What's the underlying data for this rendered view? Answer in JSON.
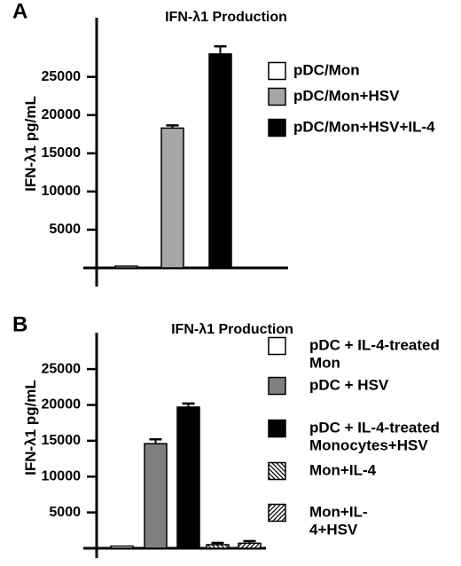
{
  "chart_data": [
    {
      "panel_label": "A",
      "type": "bar",
      "title": "IFN-λ1 Production",
      "ylabel": "IFN-λ1 pg/mL",
      "ylim": [
        0,
        31000
      ],
      "yticks": [
        5000,
        10000,
        15000,
        20000,
        25000
      ],
      "grid": false,
      "legend_position": "right",
      "series": [
        {
          "name": "pDC/Mon",
          "value": 200,
          "error": 0,
          "color": "#ffffff",
          "pattern": "none"
        },
        {
          "name": "pDC/Mon+HSV",
          "value": 18300,
          "error": 350,
          "color": "#a6a6a6",
          "pattern": "none"
        },
        {
          "name": "pDC/Mon+HSV+IL-4",
          "value": 28000,
          "error": 1000,
          "color": "#000000",
          "pattern": "none"
        }
      ]
    },
    {
      "panel_label": "B",
      "type": "bar",
      "title": "IFN-λ1 Production",
      "ylabel": "IFN-λ1 pg/mL",
      "ylim": [
        0,
        26000
      ],
      "yticks": [
        5000,
        10000,
        15000,
        20000,
        25000
      ],
      "grid": false,
      "legend_position": "right",
      "series": [
        {
          "name": "pDC + IL-4-treated Mon",
          "legend_lines": [
            "pDC + IL-4-treated",
            "Mon"
          ],
          "value": 300,
          "error": 0,
          "color": "#ffffff",
          "pattern": "none"
        },
        {
          "name": "pDC + HSV",
          "legend_lines": [
            "pDC + HSV"
          ],
          "value": 14600,
          "error": 600,
          "color": "#7f7f7f",
          "pattern": "none"
        },
        {
          "name": "pDC + IL-4-treated Monocytes+HSV",
          "legend_lines": [
            "pDC + IL-4-treated",
            "Monocytes+HSV"
          ],
          "value": 19700,
          "error": 500,
          "color": "#000000",
          "pattern": "none"
        },
        {
          "name": "Mon+IL-4",
          "legend_lines": [
            "Mon+IL-4"
          ],
          "value": 500,
          "error": 250,
          "color": "#ffffff",
          "pattern": "hatch-back"
        },
        {
          "name": "Mon+IL-4+HSV",
          "legend_lines": [
            "Mon+IL-",
            "4+HSV"
          ],
          "value": 700,
          "error": 300,
          "color": "#ffffff",
          "pattern": "hatch-fwd"
        }
      ]
    }
  ]
}
